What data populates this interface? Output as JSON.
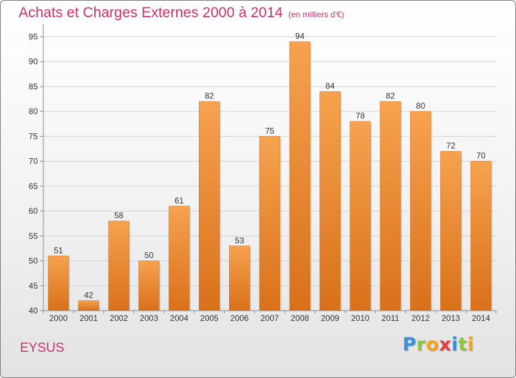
{
  "chart_data": {
    "type": "bar",
    "title": "Achats et Charges Externes 2000 à 2014",
    "subtitle": "(en milliers d'€)",
    "categories": [
      "2000",
      "2001",
      "2002",
      "2003",
      "2004",
      "2005",
      "2006",
      "2007",
      "2008",
      "2009",
      "2010",
      "2011",
      "2012",
      "2013",
      "2014"
    ],
    "values": [
      51,
      42,
      58,
      50,
      61,
      82,
      53,
      75,
      94,
      84,
      78,
      82,
      80,
      72,
      70
    ],
    "ylim": [
      40,
      97
    ],
    "yticks": [
      40,
      45,
      50,
      55,
      60,
      65,
      70,
      75,
      80,
      85,
      90,
      95
    ],
    "grid": true,
    "colors": {
      "bar_light": "#f6a24f",
      "bar_dark": "#d9701a"
    }
  },
  "footer": {
    "commune": "EYSUS",
    "logo_letters": [
      {
        "ch": "P",
        "color": "#3b8fd9"
      },
      {
        "ch": "r",
        "color": "#8cc63f"
      },
      {
        "ch": "o",
        "color": "#f7a21b"
      },
      {
        "ch": "x",
        "color": "#e23d3d"
      },
      {
        "ch": "i",
        "color": "#3b8fd9"
      },
      {
        "ch": "t",
        "color": "#8cc63f"
      },
      {
        "ch": "i",
        "color": "#f7a21b"
      }
    ]
  }
}
